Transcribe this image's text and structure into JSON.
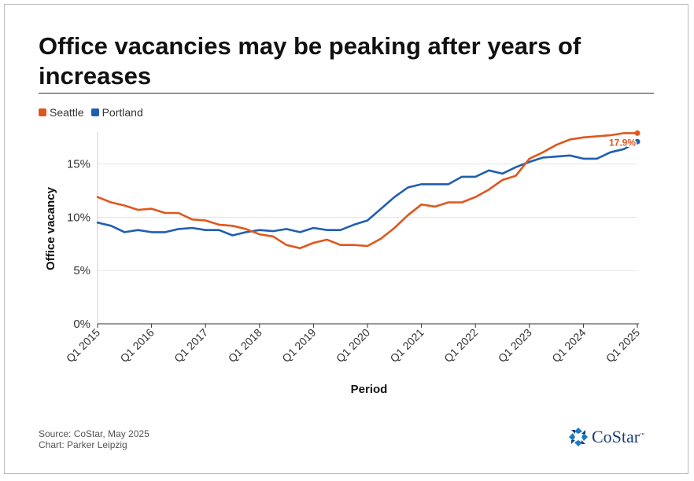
{
  "title": "Office vacancies may be peaking after years of increases",
  "footer": {
    "source": "Source: CoStar, May 2025",
    "credit": "Chart: Parker Leipzig"
  },
  "logo": {
    "text": "CoStar",
    "tm": "™"
  },
  "colors": {
    "seattle": "#e0571c",
    "portland": "#1f5fb0",
    "grid": "#e6e6e6",
    "axis": "#cccccc"
  },
  "chart_data": {
    "type": "line",
    "xlabel": "Period",
    "ylabel": "Office vacancy",
    "ylim": [
      0,
      18
    ],
    "yticks": [
      {
        "value": 0,
        "label": "0%"
      },
      {
        "value": 5,
        "label": "5%"
      },
      {
        "value": 10,
        "label": "10%"
      },
      {
        "value": 15,
        "label": "15%"
      }
    ],
    "xlim": [
      2015,
      2025
    ],
    "xticks": [
      {
        "value": 2015,
        "label": "Q1 2015"
      },
      {
        "value": 2016,
        "label": "Q1 2016"
      },
      {
        "value": 2017,
        "label": "Q1 2017"
      },
      {
        "value": 2018,
        "label": "Q1 2018"
      },
      {
        "value": 2019,
        "label": "Q1 2019"
      },
      {
        "value": 2020,
        "label": "Q1 2020"
      },
      {
        "value": 2021,
        "label": "Q1 2021"
      },
      {
        "value": 2022,
        "label": "Q1 2022"
      },
      {
        "value": 2023,
        "label": "Q1 2023"
      },
      {
        "value": 2024,
        "label": "Q1 2024"
      },
      {
        "value": 2025,
        "label": "Q1 2025"
      }
    ],
    "grid": true,
    "legend_position": "top-left",
    "x": [
      2015,
      2015.25,
      2015.5,
      2015.75,
      2016,
      2016.25,
      2016.5,
      2016.75,
      2017,
      2017.25,
      2017.5,
      2017.75,
      2018,
      2018.25,
      2018.5,
      2018.75,
      2019,
      2019.25,
      2019.5,
      2019.75,
      2020,
      2020.25,
      2020.5,
      2020.75,
      2021,
      2021.25,
      2021.5,
      2021.75,
      2022,
      2022.25,
      2022.5,
      2022.75,
      2023,
      2023.25,
      2023.5,
      2023.75,
      2024,
      2024.25,
      2024.5,
      2024.75,
      2025
    ],
    "series": [
      {
        "name": "Seattle",
        "color": "#e0571c",
        "values": [
          11.9,
          11.4,
          11.1,
          10.7,
          10.8,
          10.4,
          10.4,
          9.8,
          9.7,
          9.3,
          9.2,
          8.9,
          8.4,
          8.2,
          7.4,
          7.1,
          7.6,
          7.9,
          7.4,
          7.4,
          7.3,
          8.0,
          9.0,
          10.2,
          11.2,
          11.0,
          11.4,
          11.4,
          11.9,
          12.6,
          13.5,
          13.9,
          15.5,
          16.1,
          16.8,
          17.3,
          17.5,
          17.6,
          17.7,
          17.9,
          17.9
        ],
        "end_label": "17.9%"
      },
      {
        "name": "Portland",
        "color": "#1f5fb0",
        "values": [
          9.5,
          9.2,
          8.6,
          8.8,
          8.6,
          8.6,
          8.9,
          9.0,
          8.8,
          8.8,
          8.3,
          8.6,
          8.8,
          8.7,
          8.9,
          8.6,
          9.0,
          8.8,
          8.8,
          9.3,
          9.7,
          10.8,
          11.9,
          12.8,
          13.1,
          13.1,
          13.1,
          13.8,
          13.8,
          14.4,
          14.1,
          14.7,
          15.2,
          15.6,
          15.7,
          15.8,
          15.5,
          15.5,
          16.1,
          16.4,
          17.1
        ]
      }
    ]
  }
}
